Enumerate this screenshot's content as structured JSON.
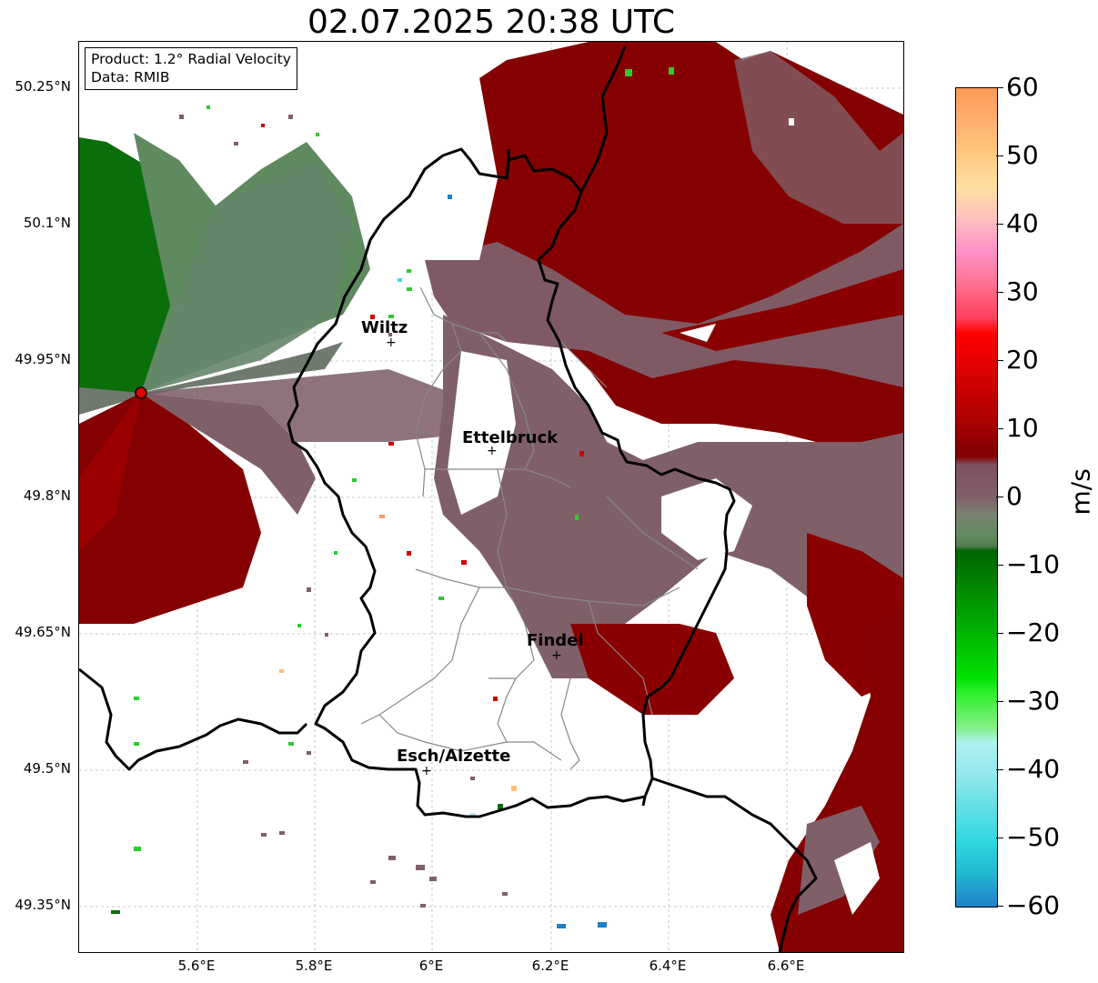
{
  "title": "02.07.2025 20:38 UTC",
  "infobox": {
    "product": "Product: 1.2° Radial Velocity",
    "data_source": "Data: RMIB"
  },
  "lat_labels": [
    "50.25°N",
    "50.1°N",
    "49.95°N",
    "49.8°N",
    "49.65°N",
    "49.5°N",
    "49.35°N"
  ],
  "lon_labels": [
    "5.6°E",
    "5.8°E",
    "6°E",
    "6.2°E",
    "6.4°E",
    "6.6°E"
  ],
  "cities": [
    {
      "name": "Wiltz",
      "lon": 5.93,
      "lat": 49.967
    },
    {
      "name": "Ettelbruck",
      "lon": 6.1,
      "lat": 49.85
    },
    {
      "name": "Findel",
      "lon": 6.21,
      "lat": 49.627
    },
    {
      "name": "Esch/Alzette",
      "lon": 5.99,
      "lat": 49.499
    }
  ],
  "radar_site": {
    "lon": 5.505,
    "lat": 49.915
  },
  "colorbar": {
    "unit": "m/s",
    "ticks": [
      "60",
      "50",
      "40",
      "30",
      "20",
      "10",
      "0",
      "−10",
      "−20",
      "−30",
      "−40",
      "−50",
      "−60"
    ],
    "min": -60,
    "max": 60
  },
  "colors": {
    "approaching_dark_green": "#006400",
    "near_zero_neg": "#5f8a5f",
    "near_zero_pos": "#7f6068",
    "receding_dark_red": "#850000",
    "receding_red": "#e00000",
    "border_black": "#000000",
    "canton_gray": "#888888"
  },
  "map_extent": {
    "lon_min": 5.4,
    "lon_max": 6.795,
    "lat_min": 49.28,
    "lat_max": 50.3
  }
}
